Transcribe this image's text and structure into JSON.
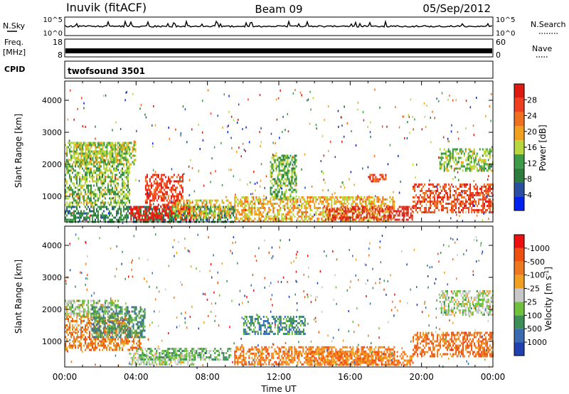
{
  "header": {
    "station": "Inuvik (fitACF)",
    "beam": "Beam 09",
    "date": "05/Sep/2012"
  },
  "strip_panels": {
    "nsky": {
      "label": "N.Sky",
      "ticks": [
        "10^5",
        "10^0"
      ]
    },
    "nsearch": {
      "label": "N.Search",
      "ticks": [
        "10^5",
        "10^0"
      ]
    },
    "freq": {
      "label_line1": "Freq.",
      "label_line2": "[MHz]",
      "ticks": [
        "18",
        "8"
      ]
    },
    "nave": {
      "label": "Nave",
      "ticks": [
        "60",
        "0"
      ]
    },
    "cpid": {
      "label": "CPID",
      "value": "twofsound 3501"
    }
  },
  "chart_data": [
    {
      "type": "heatmap",
      "name": "power",
      "ylabel": "Slant Range [km]",
      "xlabel": "",
      "yticks": [
        1000,
        2000,
        3000,
        4000
      ],
      "ylim": [
        200,
        4600
      ],
      "xlim_hours": [
        0,
        24
      ],
      "colorbar": {
        "label": "Power [dB]",
        "ticks": [
          "4",
          "8",
          "12",
          "16",
          "20",
          "24",
          "28"
        ],
        "colors": [
          "#0022ee",
          "#2a4fa0",
          "#2e7d3e",
          "#3e9b47",
          "#b8d640",
          "#f0a020",
          "#ee7020",
          "#ee4020",
          "#dd1a10"
        ]
      },
      "regions": [
        {
          "t": [
            0.0,
            3.6
          ],
          "r": [
            700,
            2700
          ],
          "level": 0.45
        },
        {
          "t": [
            0.0,
            9.5
          ],
          "r": [
            200,
            700
          ],
          "level": 0.3
        },
        {
          "t": [
            3.6,
            7.2
          ],
          "r": [
            250,
            700
          ],
          "level": 0.98
        },
        {
          "t": [
            4.5,
            6.6
          ],
          "r": [
            700,
            1700
          ],
          "level": 0.85
        },
        {
          "t": [
            6.0,
            9.3
          ],
          "r": [
            300,
            900
          ],
          "level": 0.55
        },
        {
          "t": [
            9.5,
            18.5
          ],
          "r": [
            250,
            1000
          ],
          "level": 0.6
        },
        {
          "t": [
            14.5,
            19.5
          ],
          "r": [
            250,
            700
          ],
          "level": 0.9
        },
        {
          "t": [
            11.5,
            13.0
          ],
          "r": [
            900,
            2300
          ],
          "level": 0.42
        },
        {
          "t": [
            17.0,
            18.0
          ],
          "r": [
            1450,
            1700
          ],
          "level": 0.8
        },
        {
          "t": [
            19.5,
            24.0
          ],
          "r": [
            500,
            1400
          ],
          "level": 0.82
        },
        {
          "t": [
            21.0,
            24.0
          ],
          "r": [
            1800,
            2500
          ],
          "level": 0.45
        },
        {
          "t": [
            0.5,
            4.0
          ],
          "r": [
            2000,
            2700
          ],
          "level": 0.5
        }
      ]
    },
    {
      "type": "heatmap",
      "name": "velocity",
      "ylabel": "Slant Range [km]",
      "xlabel": "Time UT",
      "yticks": [
        1000,
        2000,
        3000,
        4000
      ],
      "ylim": [
        200,
        4600
      ],
      "xlim_hours": [
        0,
        24
      ],
      "xticks": [
        "00:00",
        "04:00",
        "08:00",
        "12:00",
        "16:00",
        "20:00",
        "00:00"
      ],
      "colorbar": {
        "label": "Velocity [m s-1]",
        "ticks": [
          "1000",
          "500",
          "100",
          "25",
          "-25",
          "-100",
          "-500",
          "-1000"
        ],
        "colors": [
          "#2040b0",
          "#3a6ab0",
          "#3e8e58",
          "#70c040",
          "#c8c8c8",
          "#f0a020",
          "#ee7820",
          "#ee5010",
          "#ee1010"
        ]
      },
      "regions": [
        {
          "t": [
            0.0,
            3.6
          ],
          "r": [
            1300,
            1800
          ],
          "level": 0.68
        },
        {
          "t": [
            0.0,
            4.3
          ],
          "r": [
            700,
            1300
          ],
          "level": 0.72
        },
        {
          "t": [
            0.0,
            3.0
          ],
          "r": [
            1800,
            2300
          ],
          "level": 0.45
        },
        {
          "t": [
            1.5,
            4.5
          ],
          "r": [
            1100,
            2100
          ],
          "level": 0.28
        },
        {
          "t": [
            3.6,
            7.2
          ],
          "r": [
            250,
            650
          ],
          "level": 0.45
        },
        {
          "t": [
            4.0,
            9.3
          ],
          "r": [
            400,
            800
          ],
          "level": 0.36
        },
        {
          "t": [
            9.5,
            18.5
          ],
          "r": [
            250,
            850
          ],
          "level": 0.72
        },
        {
          "t": [
            10.0,
            13.5
          ],
          "r": [
            1200,
            1800
          ],
          "level": 0.25
        },
        {
          "t": [
            13.5,
            19.5
          ],
          "r": [
            250,
            700
          ],
          "level": 0.72
        },
        {
          "t": [
            19.5,
            24.0
          ],
          "r": [
            500,
            1300
          ],
          "level": 0.75
        },
        {
          "t": [
            21.0,
            24.0
          ],
          "r": [
            1800,
            2600
          ],
          "level": 0.45
        }
      ]
    }
  ]
}
